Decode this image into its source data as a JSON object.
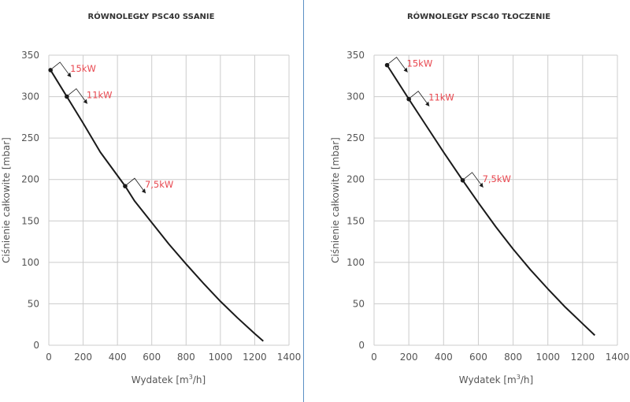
{
  "colors": {
    "curve": "#1a1a1a",
    "grid": "#cccccc",
    "text": "#555555",
    "title": "#333333",
    "annotation": "#e8474f",
    "divider": "#5b8fc4"
  },
  "chart_data": [
    {
      "type": "line",
      "title": "RÓWNOLEGŁY PSC40 SSANIE",
      "xlabel_prefix": "Wydatek [m",
      "xlabel_sup": "3",
      "xlabel_suffix": "/h]",
      "ylabel": "Ciśnienie całkowite [mbar]",
      "xlim": [
        0,
        1400
      ],
      "ylim": [
        0,
        350
      ],
      "xticks": [
        0,
        200,
        400,
        600,
        800,
        1000,
        1200,
        1400
      ],
      "yticks": [
        0,
        50,
        100,
        150,
        200,
        250,
        300,
        350
      ],
      "grid": true,
      "series": [
        {
          "x": [
            10,
            105,
            200,
            300,
            445,
            500,
            600,
            700,
            800,
            900,
            1000,
            1100,
            1200,
            1250
          ],
          "y": [
            332,
            300,
            268,
            233,
            192,
            174,
            148,
            122,
            98,
            75,
            53,
            33,
            14,
            5
          ]
        }
      ],
      "annotations": [
        {
          "x": 10,
          "y": 332,
          "label": "15kW"
        },
        {
          "x": 105,
          "y": 300,
          "label": "11kW"
        },
        {
          "x": 445,
          "y": 192,
          "label": "7,5kW"
        }
      ]
    },
    {
      "type": "line",
      "title": "RÓWNOLEGŁY PSC40 TŁOCZENIE",
      "xlabel_prefix": "Wydatek [m",
      "xlabel_sup": "3",
      "xlabel_suffix": "/h]",
      "ylabel": "Ciśnienie całkowite [mbar]",
      "xlim": [
        0,
        1400
      ],
      "ylim": [
        0,
        350
      ],
      "xticks": [
        0,
        200,
        400,
        600,
        800,
        1000,
        1200,
        1400
      ],
      "yticks": [
        0,
        50,
        100,
        150,
        200,
        250,
        300,
        350
      ],
      "grid": true,
      "series": [
        {
          "x": [
            75,
            200,
            300,
            400,
            510,
            600,
            700,
            800,
            900,
            1000,
            1100,
            1200,
            1270
          ],
          "y": [
            338,
            297,
            265,
            233,
            199,
            172,
            143,
            116,
            91,
            68,
            46,
            26,
            12
          ]
        }
      ],
      "annotations": [
        {
          "x": 75,
          "y": 338,
          "label": "15kW"
        },
        {
          "x": 200,
          "y": 297,
          "label": "11kW"
        },
        {
          "x": 510,
          "y": 199,
          "label": "7,5kW"
        }
      ]
    }
  ]
}
